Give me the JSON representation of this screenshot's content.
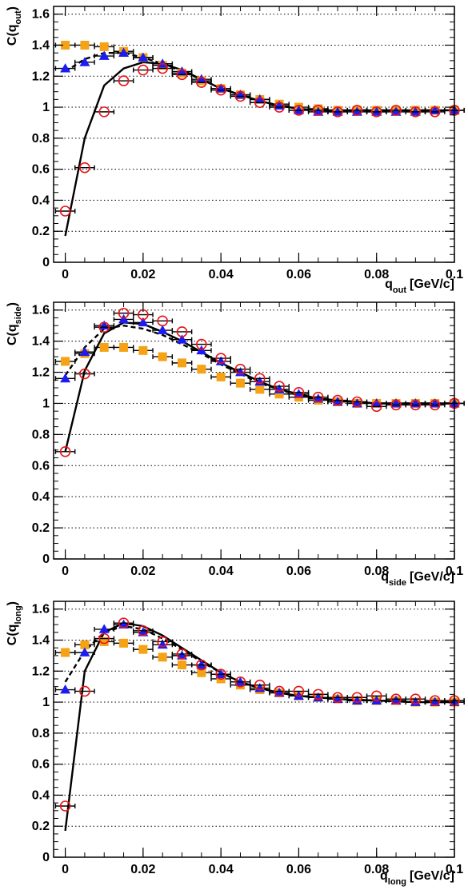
{
  "chart_data": [
    {
      "type": "scatter",
      "ylabel_base": "C(q",
      "ylabel_sub": "out",
      "ylabel_close": ")",
      "xlabel_main": "q",
      "xlabel_sub": "out",
      "xlabel_unit": "[GeV/c]",
      "xlim": [
        -0.003,
        0.1
      ],
      "ylim": [
        0,
        1.65
      ],
      "xticks": [
        0,
        0.02,
        0.04,
        0.06,
        0.08,
        0.1
      ],
      "xtick_labels": [
        "0",
        "0.02",
        "0.04",
        "0.06",
        "0.08",
        "0.1"
      ],
      "yticks": [
        0,
        0.2,
        0.4,
        0.6,
        0.8,
        1.0,
        1.2,
        1.4,
        1.6
      ],
      "ytick_labels": [
        "0",
        "0.2",
        "0.4",
        "0.6",
        "0.8",
        "1",
        "1.2",
        "1.4",
        "1.6"
      ],
      "grid": "horizontal dotted",
      "series": [
        {
          "marker": "open-circle",
          "color": "#e8131a",
          "xerr": 0.0025,
          "x": [
            0,
            0.005,
            0.01,
            0.015,
            0.02,
            0.025,
            0.03,
            0.035,
            0.04,
            0.045,
            0.05,
            0.055,
            0.06,
            0.065,
            0.07,
            0.075,
            0.08,
            0.085,
            0.09,
            0.095,
            0.1
          ],
          "y": [
            0.33,
            0.61,
            0.97,
            1.17,
            1.24,
            1.25,
            1.21,
            1.16,
            1.11,
            1.07,
            1.03,
            1.0,
            0.98,
            0.98,
            0.97,
            0.98,
            0.97,
            0.98,
            0.97,
            0.97,
            0.98
          ]
        },
        {
          "marker": "filled-triangle",
          "color": "#1c1cf2",
          "xerr": 0.0025,
          "x": [
            0,
            0.005,
            0.01,
            0.015,
            0.02,
            0.025,
            0.03,
            0.035,
            0.04,
            0.045,
            0.05,
            0.055,
            0.06,
            0.065,
            0.07,
            0.075,
            0.08,
            0.085,
            0.09,
            0.095,
            0.1
          ],
          "y": [
            1.25,
            1.29,
            1.33,
            1.35,
            1.32,
            1.28,
            1.23,
            1.18,
            1.12,
            1.08,
            1.05,
            1.01,
            0.98,
            0.97,
            0.97,
            0.97,
            0.97,
            0.97,
            0.97,
            0.98,
            0.98
          ]
        },
        {
          "marker": "filled-square",
          "color": "#f5a214",
          "xerr": 0.0025,
          "x": [
            0,
            0.005,
            0.01,
            0.015,
            0.02,
            0.025,
            0.03,
            0.035,
            0.04,
            0.045,
            0.05,
            0.055,
            0.06,
            0.065,
            0.07,
            0.075,
            0.08,
            0.085,
            0.09,
            0.095,
            0.1
          ],
          "y": [
            1.4,
            1.4,
            1.39,
            1.36,
            1.32,
            1.27,
            1.22,
            1.17,
            1.12,
            1.08,
            1.05,
            1.02,
            1.0,
            0.99,
            0.98,
            0.98,
            0.98,
            0.98,
            0.98,
            0.98,
            0.98
          ]
        }
      ],
      "curves": [
        {
          "style": "solid",
          "color": "#000000",
          "x": [
            0,
            0.005,
            0.01,
            0.015,
            0.02,
            0.025,
            0.03,
            0.035,
            0.04,
            0.045,
            0.05,
            0.055,
            0.06,
            0.065,
            0.07,
            0.08,
            0.09,
            0.1
          ],
          "y": [
            0.17,
            0.8,
            1.14,
            1.25,
            1.29,
            1.28,
            1.24,
            1.18,
            1.12,
            1.08,
            1.04,
            1.01,
            0.99,
            0.98,
            0.98,
            0.98,
            0.98,
            0.98
          ]
        },
        {
          "style": "dashed",
          "color": "#000000",
          "x": [
            0,
            0.005,
            0.01,
            0.015,
            0.02,
            0.025,
            0.03,
            0.035,
            0.04,
            0.045,
            0.05,
            0.055,
            0.06,
            0.065,
            0.07,
            0.08,
            0.09,
            0.1
          ],
          "y": [
            1.23,
            1.31,
            1.35,
            1.35,
            1.32,
            1.28,
            1.23,
            1.18,
            1.12,
            1.08,
            1.04,
            1.01,
            0.99,
            0.98,
            0.98,
            0.98,
            0.98,
            0.98
          ]
        }
      ]
    },
    {
      "type": "scatter",
      "ylabel_base": "C(q",
      "ylabel_sub": "side",
      "ylabel_close": ")",
      "xlabel_main": "q",
      "xlabel_sub": "side",
      "xlabel_unit": "[GeV/c]",
      "xlim": [
        -0.003,
        0.1
      ],
      "ylim": [
        0,
        1.65
      ],
      "xticks": [
        0,
        0.02,
        0.04,
        0.06,
        0.08,
        0.1
      ],
      "xtick_labels": [
        "0",
        "0.02",
        "0.04",
        "0.06",
        "0.08",
        "0.1"
      ],
      "yticks": [
        0,
        0.2,
        0.4,
        0.6,
        0.8,
        1.0,
        1.2,
        1.4,
        1.6
      ],
      "ytick_labels": [
        "0",
        "0.2",
        "0.4",
        "0.6",
        "0.8",
        "1",
        "1.2",
        "1.4",
        "1.6"
      ],
      "grid": "horizontal dotted",
      "series": [
        {
          "marker": "open-circle",
          "color": "#e8131a",
          "xerr": 0.0025,
          "x": [
            0,
            0.005,
            0.01,
            0.015,
            0.02,
            0.025,
            0.03,
            0.035,
            0.04,
            0.045,
            0.05,
            0.055,
            0.06,
            0.065,
            0.07,
            0.075,
            0.08,
            0.085,
            0.09,
            0.095,
            0.1
          ],
          "y": [
            0.69,
            1.19,
            1.49,
            1.58,
            1.57,
            1.53,
            1.46,
            1.38,
            1.29,
            1.22,
            1.16,
            1.11,
            1.07,
            1.04,
            1.02,
            1.01,
            0.98,
            0.99,
            0.99,
            0.99,
            1.0
          ]
        },
        {
          "marker": "filled-triangle",
          "color": "#1c1cf2",
          "xerr": 0.0025,
          "x": [
            0,
            0.005,
            0.01,
            0.015,
            0.02,
            0.025,
            0.03,
            0.035,
            0.04,
            0.045,
            0.05,
            0.055,
            0.06,
            0.065,
            0.07,
            0.075,
            0.08,
            0.085,
            0.09,
            0.095,
            0.1
          ],
          "y": [
            1.16,
            1.33,
            1.5,
            1.54,
            1.52,
            1.47,
            1.41,
            1.34,
            1.27,
            1.2,
            1.14,
            1.09,
            1.06,
            1.03,
            1.01,
            1.0,
            1.0,
            1.0,
            1.0,
            1.0,
            1.0
          ]
        },
        {
          "marker": "filled-square",
          "color": "#f5a214",
          "xerr": 0.0025,
          "x": [
            0,
            0.005,
            0.01,
            0.015,
            0.02,
            0.025,
            0.03,
            0.035,
            0.04,
            0.045,
            0.05,
            0.055,
            0.06,
            0.065,
            0.07,
            0.075,
            0.08,
            0.085,
            0.09,
            0.095,
            0.1
          ],
          "y": [
            1.27,
            1.32,
            1.36,
            1.36,
            1.34,
            1.3,
            1.26,
            1.22,
            1.17,
            1.13,
            1.09,
            1.06,
            1.04,
            1.02,
            1.01,
            1.0,
            1.0,
            1.0,
            1.0,
            1.0,
            1.0
          ]
        }
      ],
      "curves": [
        {
          "style": "solid",
          "color": "#000000",
          "x": [
            0,
            0.005,
            0.01,
            0.015,
            0.02,
            0.025,
            0.03,
            0.035,
            0.04,
            0.045,
            0.05,
            0.055,
            0.06,
            0.065,
            0.07,
            0.08,
            0.09,
            0.1
          ],
          "y": [
            0.69,
            1.21,
            1.45,
            1.52,
            1.51,
            1.46,
            1.4,
            1.33,
            1.26,
            1.2,
            1.14,
            1.09,
            1.06,
            1.03,
            1.02,
            1.0,
            1.0,
            1.0
          ]
        },
        {
          "style": "dashed",
          "color": "#000000",
          "x": [
            0,
            0.005,
            0.01,
            0.015,
            0.02,
            0.025,
            0.03,
            0.035,
            0.04,
            0.045,
            0.05,
            0.055,
            0.06,
            0.065,
            0.07,
            0.08,
            0.09,
            0.1
          ],
          "y": [
            1.18,
            1.36,
            1.48,
            1.5,
            1.48,
            1.44,
            1.38,
            1.32,
            1.25,
            1.19,
            1.13,
            1.09,
            1.05,
            1.03,
            1.02,
            1.0,
            1.0,
            1.0
          ]
        }
      ]
    },
    {
      "type": "scatter",
      "ylabel_base": "C(q",
      "ylabel_sub": "long",
      "ylabel_close": ")",
      "xlabel_main": "q",
      "xlabel_sub": "long",
      "xlabel_unit": "[GeV/c]",
      "xlim": [
        -0.003,
        0.1
      ],
      "ylim": [
        0,
        1.65
      ],
      "xticks": [
        0,
        0.02,
        0.04,
        0.06,
        0.08,
        0.1
      ],
      "xtick_labels": [
        "0",
        "0.02",
        "0.04",
        "0.06",
        "0.08",
        "0.1"
      ],
      "yticks": [
        0,
        0.2,
        0.4,
        0.6,
        0.8,
        1.0,
        1.2,
        1.4,
        1.6
      ],
      "ytick_labels": [
        "0",
        "0.2",
        "0.4",
        "0.6",
        "0.8",
        "1",
        "1.2",
        "1.4",
        "1.6"
      ],
      "grid": "horizontal dotted",
      "series": [
        {
          "marker": "open-circle",
          "color": "#e8131a",
          "xerr": 0.0025,
          "x": [
            0,
            0.005,
            0.01,
            0.015,
            0.02,
            0.025,
            0.03,
            0.035,
            0.04,
            0.045,
            0.05,
            0.055,
            0.06,
            0.065,
            0.07,
            0.075,
            0.08,
            0.085,
            0.09,
            0.095,
            0.1
          ],
          "y": [
            0.33,
            1.07,
            1.41,
            1.51,
            1.46,
            1.39,
            1.31,
            1.24,
            1.18,
            1.13,
            1.11,
            1.07,
            1.07,
            1.05,
            1.03,
            1.03,
            1.04,
            1.02,
            1.02,
            1.01,
            1.01
          ]
        },
        {
          "marker": "filled-triangle",
          "color": "#1c1cf2",
          "xerr": 0.0025,
          "x": [
            0,
            0.005,
            0.01,
            0.015,
            0.02,
            0.025,
            0.03,
            0.035,
            0.04,
            0.045,
            0.05,
            0.055,
            0.06,
            0.065,
            0.07,
            0.075,
            0.08,
            0.085,
            0.09,
            0.095,
            0.1
          ],
          "y": [
            1.08,
            1.32,
            1.47,
            1.5,
            1.45,
            1.37,
            1.3,
            1.24,
            1.18,
            1.13,
            1.09,
            1.06,
            1.04,
            1.03,
            1.02,
            1.01,
            1.01,
            1.01,
            1.0,
            1.0,
            1.0
          ]
        },
        {
          "marker": "filled-square",
          "color": "#f5a214",
          "xerr": 0.0025,
          "x": [
            0,
            0.005,
            0.01,
            0.015,
            0.02,
            0.025,
            0.03,
            0.035,
            0.04,
            0.045,
            0.05,
            0.055,
            0.06,
            0.065,
            0.07,
            0.075,
            0.08,
            0.085,
            0.09,
            0.095,
            0.1
          ],
          "y": [
            1.32,
            1.37,
            1.39,
            1.38,
            1.34,
            1.29,
            1.24,
            1.19,
            1.15,
            1.11,
            1.08,
            1.06,
            1.04,
            1.03,
            1.02,
            1.01,
            1.01,
            1.01,
            1.0,
            1.0,
            1.0
          ]
        }
      ],
      "curves": [
        {
          "style": "solid",
          "color": "#000000",
          "x": [
            0,
            0.005,
            0.01,
            0.015,
            0.02,
            0.025,
            0.03,
            0.035,
            0.04,
            0.045,
            0.05,
            0.055,
            0.06,
            0.065,
            0.07,
            0.08,
            0.09,
            0.1
          ],
          "y": [
            0.17,
            1.2,
            1.45,
            1.51,
            1.49,
            1.43,
            1.35,
            1.27,
            1.19,
            1.13,
            1.09,
            1.06,
            1.04,
            1.03,
            1.02,
            1.01,
            1.0,
            1.0
          ]
        },
        {
          "style": "dashed",
          "color": "#000000",
          "x": [
            0,
            0.005,
            0.01,
            0.015,
            0.02,
            0.025,
            0.03,
            0.035,
            0.04,
            0.045,
            0.05,
            0.055,
            0.06,
            0.065,
            0.07,
            0.08,
            0.09,
            0.1
          ],
          "y": [
            1.13,
            1.33,
            1.45,
            1.49,
            1.47,
            1.41,
            1.34,
            1.26,
            1.19,
            1.13,
            1.09,
            1.06,
            1.04,
            1.03,
            1.02,
            1.01,
            1.0,
            1.0
          ]
        }
      ]
    }
  ]
}
